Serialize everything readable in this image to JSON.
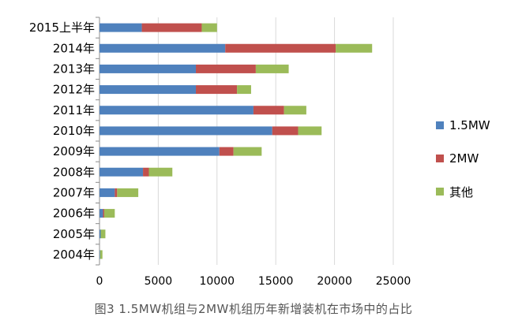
{
  "chart_data": {
    "type": "bar",
    "orientation": "horizontal",
    "stacked": true,
    "categories": [
      "2015上半年",
      "2014年",
      "2013年",
      "2012年",
      "2011年",
      "2010年",
      "2009年",
      "2008年",
      "2007年",
      "2006年",
      "2005年",
      "2004年"
    ],
    "series": [
      {
        "name": "1.5MW",
        "color": "#4f81bd",
        "values": [
          3600,
          10700,
          8200,
          8200,
          13100,
          14700,
          10200,
          3700,
          1300,
          300,
          100,
          50
        ]
      },
      {
        "name": "2MW",
        "color": "#c0504d",
        "values": [
          5100,
          9400,
          5100,
          3500,
          2600,
          2200,
          1200,
          500,
          200,
          100,
          0,
          0
        ]
      },
      {
        "name": "其他",
        "color": "#9bbb59",
        "values": [
          1300,
          3100,
          2800,
          1200,
          1900,
          2000,
          2400,
          2000,
          1800,
          900,
          400,
          200
        ]
      }
    ],
    "xlim": [
      0,
      25000
    ],
    "xticks": [
      0,
      5000,
      10000,
      15000,
      20000,
      25000
    ],
    "grid": true,
    "legend_position": "right",
    "caption": "图3 1.5MW机组与2MW机组历年新增装机在市场中的占比"
  }
}
